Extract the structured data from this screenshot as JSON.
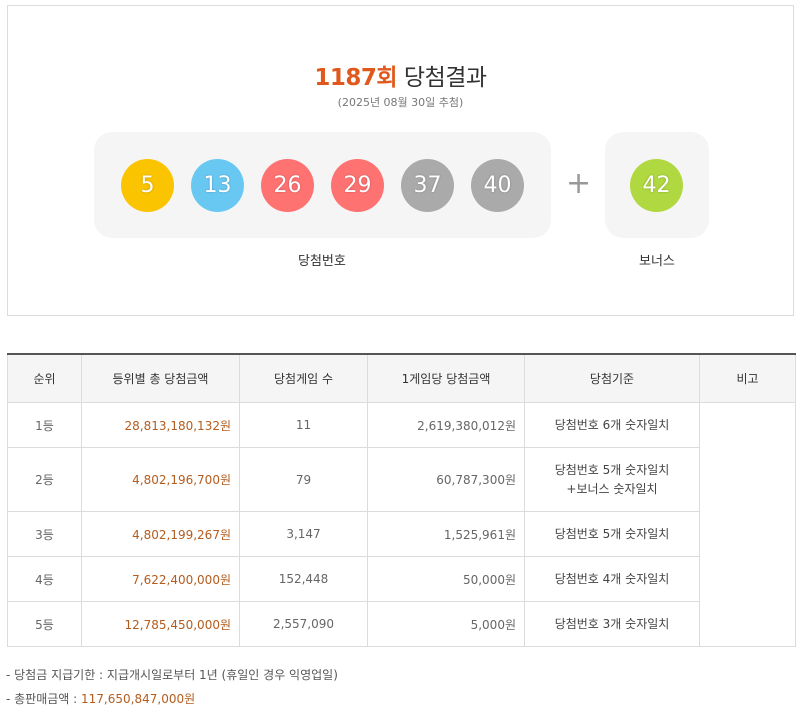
{
  "header": {
    "round": "1187회",
    "title_suffix": "당첨결과",
    "draw_date": "(2025년 08월 30일 추첨)"
  },
  "winning_numbers": [
    {
      "value": "5",
      "color": "#fbc400"
    },
    {
      "value": "13",
      "color": "#69c8f2"
    },
    {
      "value": "26",
      "color": "#ff7272"
    },
    {
      "value": "29",
      "color": "#ff7272"
    },
    {
      "value": "37",
      "color": "#aaaaaa"
    },
    {
      "value": "40",
      "color": "#aaaaaa"
    }
  ],
  "plus_sign": "+",
  "bonus_number": {
    "value": "42",
    "color": "#b0d840"
  },
  "labels": {
    "winning": "당첨번호",
    "bonus": "보너스"
  },
  "table": {
    "headers": [
      "순위",
      "등위별 총 당첨금액",
      "당첨게임 수",
      "1게임당 당첨금액",
      "당첨기준",
      "비고"
    ],
    "rows": [
      {
        "rank": "1등",
        "total": "28,813,180,132원",
        "games": "11",
        "per_game": "2,619,380,012원",
        "criteria_line1": "당첨번호 6개 숫자일치",
        "criteria_line2": ""
      },
      {
        "rank": "2등",
        "total": "4,802,196,700원",
        "games": "79",
        "per_game": "60,787,300원",
        "criteria_line1": "당첨번호 5개 숫자일치",
        "criteria_line2": "+보너스 숫자일치"
      },
      {
        "rank": "3등",
        "total": "4,802,199,267원",
        "games": "3,147",
        "per_game": "1,525,961원",
        "criteria_line1": "당첨번호 5개 숫자일치",
        "criteria_line2": ""
      },
      {
        "rank": "4등",
        "total": "7,622,400,000원",
        "games": "152,448",
        "per_game": "50,000원",
        "criteria_line1": "당첨번호 4개 숫자일치",
        "criteria_line2": ""
      },
      {
        "rank": "5등",
        "total": "12,785,450,000원",
        "games": "2,557,090",
        "per_game": "5,000원",
        "criteria_line1": "당첨번호 3개 숫자일치",
        "criteria_line2": ""
      }
    ]
  },
  "notes": {
    "payment_deadline": "-   당첨금 지급기한 : 지급개시일로부터 1년 (휴일인 경우 익영업일)",
    "total_sales_label": "-   총판매금액 : ",
    "total_sales_value": "117,650,847,000원"
  }
}
